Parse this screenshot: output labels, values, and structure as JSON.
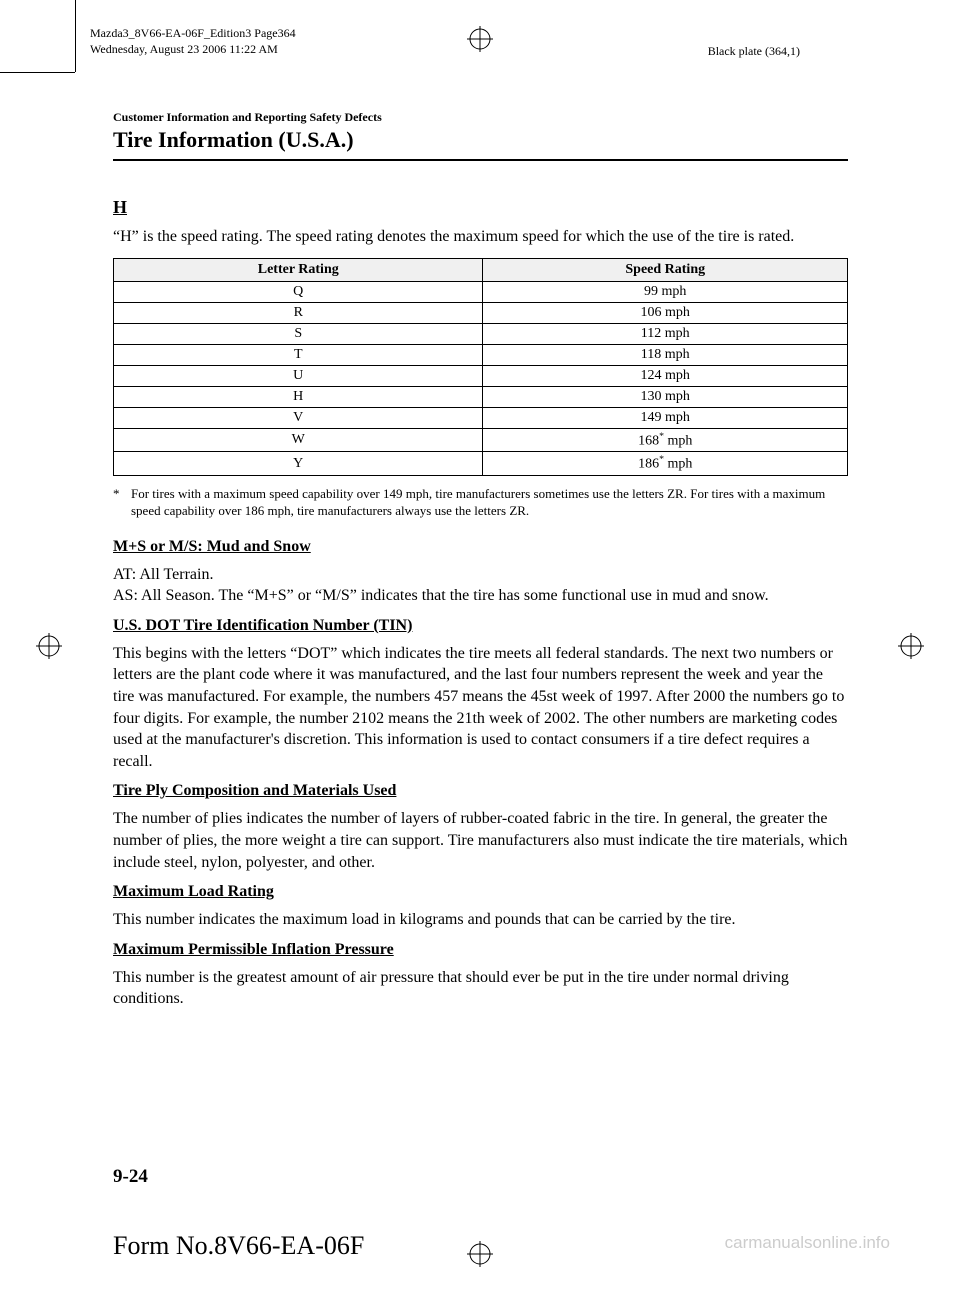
{
  "meta": {
    "line1": "Mazda3_8V66-EA-06F_Edition3 Page364",
    "line2": "Wednesday, August 23 2006 11:22 AM",
    "plate": "Black plate (364,1)"
  },
  "header": {
    "breadcrumb": "Customer Information and Reporting Safety Defects",
    "title": "Tire Information (U.S.A.)"
  },
  "sectionH": {
    "heading": "H",
    "text": "“H” is the speed rating. The speed rating denotes the maximum speed for which the use of the tire is rated."
  },
  "table": {
    "columns": [
      "Letter Rating",
      "Speed Rating"
    ],
    "rows": [
      {
        "letter": "Q",
        "speed": "99 mph",
        "star": false
      },
      {
        "letter": "R",
        "speed": "106 mph",
        "star": false
      },
      {
        "letter": "S",
        "speed": "112 mph",
        "star": false
      },
      {
        "letter": "T",
        "speed": "118 mph",
        "star": false
      },
      {
        "letter": "U",
        "speed": "124 mph",
        "star": false
      },
      {
        "letter": "H",
        "speed": "130 mph",
        "star": false
      },
      {
        "letter": "V",
        "speed": "149 mph",
        "star": false
      },
      {
        "letter": "W",
        "speed": "168",
        "star": true,
        "unit": " mph"
      },
      {
        "letter": "Y",
        "speed": "186",
        "star": true,
        "unit": " mph"
      }
    ],
    "header_bg": "#f0f0f0",
    "border_color": "#000000"
  },
  "footnote": {
    "mark": "*",
    "text": "For tires with a maximum speed capability over 149 mph, tire manufacturers sometimes use the letters ZR. For tires with a maximum speed capability over 186 mph, tire manufacturers always use the letters ZR."
  },
  "sections": {
    "ms": {
      "heading": "M+S or M/S: Mud and Snow",
      "line1": "AT: All Terrain.",
      "line2": "AS: All Season. The “M+S” or “M/S” indicates that the tire has some functional use in mud and snow."
    },
    "tin": {
      "heading": "U.S. DOT Tire Identification Number (TIN)",
      "text": "This begins with the letters “DOT” which indicates the tire meets all federal standards. The next two numbers or letters are the plant code where it was manufactured, and the last four numbers represent the week and year the tire was manufactured. For example, the numbers 457 means the 45st week of 1997. After 2000 the numbers go to four digits. For example, the number 2102 means the 21th week of 2002. The other numbers are marketing codes used at the manufacturer's discretion. This information is used to contact consumers if a tire defect requires a recall."
    },
    "ply": {
      "heading": "Tire Ply Composition and Materials Used",
      "text": "The number of plies indicates the number of layers of rubber-coated fabric in the tire. In general, the greater the number of plies, the more weight a tire can support. Tire manufacturers also must indicate the tire materials, which include steel, nylon, polyester, and other."
    },
    "maxload": {
      "heading": "Maximum Load Rating",
      "text": "This number indicates the maximum load in kilograms and pounds that can be carried by the tire."
    },
    "maxpsi": {
      "heading": "Maximum Permissible Inflation Pressure",
      "text": "This number is the greatest amount of air pressure that should ever be put in the tire under normal driving conditions."
    }
  },
  "footer": {
    "page": "9-24",
    "form": "Form No.8V66-EA-06F",
    "watermark": "carmanualsonline.info"
  }
}
